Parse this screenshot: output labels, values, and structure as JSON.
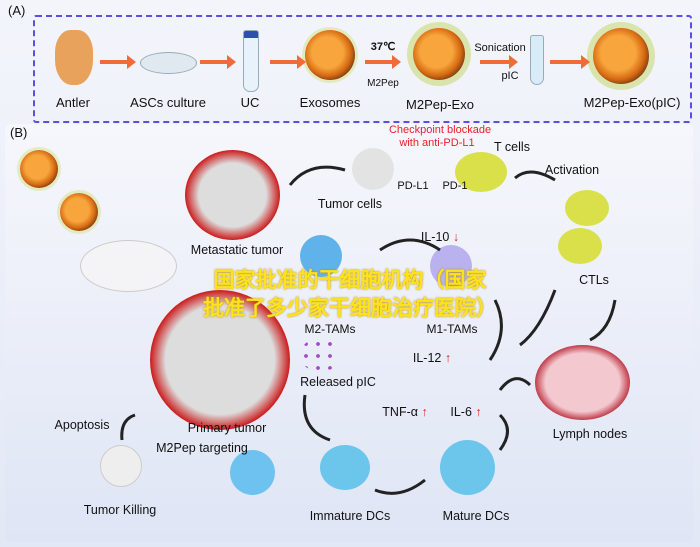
{
  "panel_a": {
    "label": "(A)",
    "steps": [
      "Antler",
      "ASCs culture",
      "UC",
      "Exosomes",
      "M2Pep-Exo",
      "M2Pep-Exo(pIC)"
    ],
    "temp": "37℃",
    "m2pep": "M2Pep",
    "sonication": "Sonication",
    "pic": "pIC"
  },
  "panel_b": {
    "label": "(B)",
    "checkpoint_1": "Checkpoint blockade",
    "checkpoint_2": "with anti-PD-L1",
    "t_cells": "T cells",
    "pd_l1": "PD-L1",
    "pd_1": "PD-1",
    "tumor_cells": "Tumor cells",
    "metastatic_tumor": "Metastatic tumor",
    "il10": "IL-10",
    "activation": "Activation",
    "ctls": "CTLs",
    "m2_tams": "M2-TAMs",
    "m1_tams": "M1-TAMs",
    "il12": "IL-12",
    "released_pic": "Released pIC",
    "tnf": "TNF-α",
    "il6": "IL-6",
    "lymph_nodes": "Lymph nodes",
    "apoptosis": "Apoptosis",
    "primary_tumor": "Primary tumor",
    "m2pep_targeting": "M2Pep targeting",
    "tumor_killing": "Tumor Killing",
    "immature_dcs": "Immature DCs",
    "mature_dcs": "Mature DCs"
  },
  "watermark": {
    "line1": "国家批准的干细胞机构（国家",
    "line2": "批准了多少家干细胞治疗医院）"
  },
  "colors": {
    "dashed_border": "#5b4ee0",
    "arrow": "#f26a3a",
    "highlight_red": "#e8202a",
    "watermark": "#ffe21c"
  }
}
